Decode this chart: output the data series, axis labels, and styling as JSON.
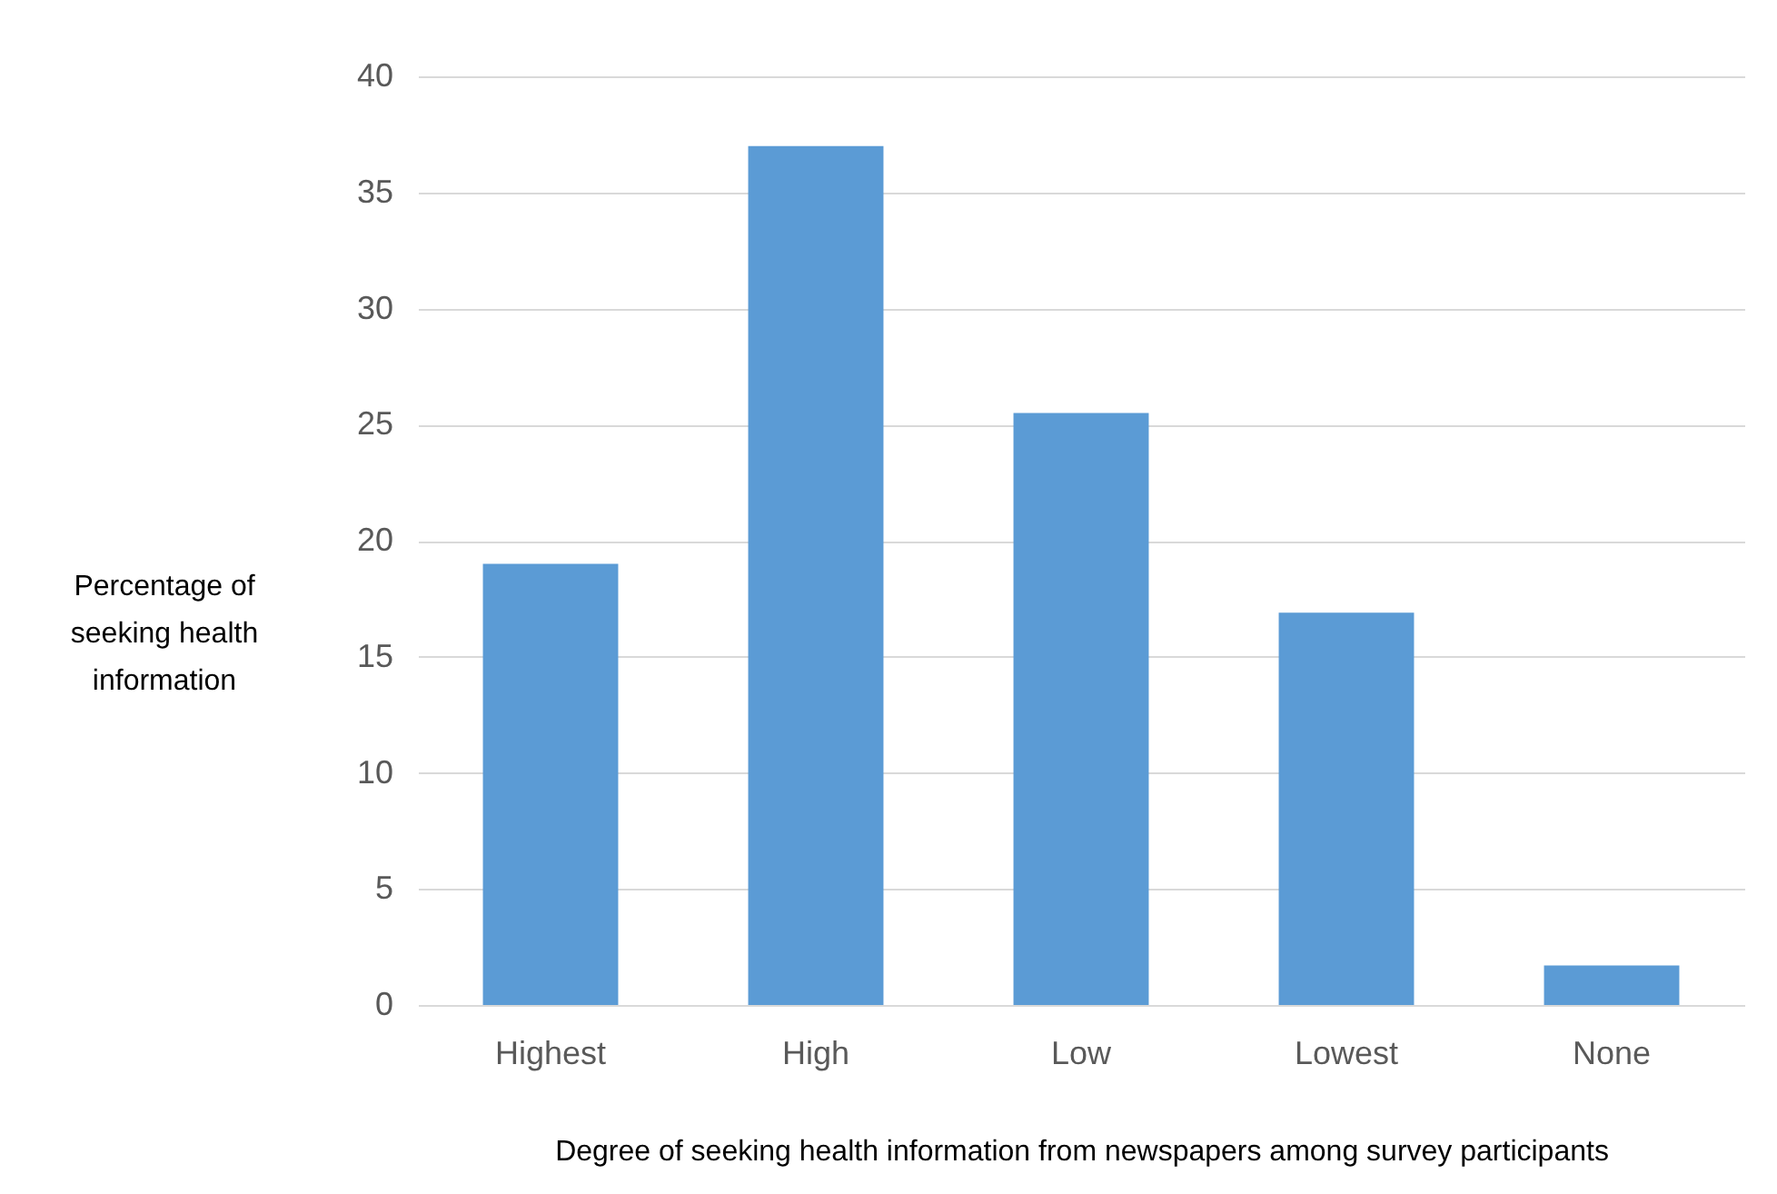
{
  "chart_data": {
    "type": "bar",
    "xlabel": "Degree of seeking health information from newspapers among survey participants",
    "ylabel": "Percentage of seeking health information",
    "categories": [
      "Highest",
      "High",
      "Low",
      "Lowest",
      "None"
    ],
    "values": [
      19,
      37,
      25.5,
      16.9,
      1.7
    ],
    "color": "#5b9bd5",
    "ylim": [
      0,
      40
    ],
    "yticks": [
      0,
      5,
      10,
      15,
      20,
      25,
      30,
      35,
      40
    ],
    "grid": "y"
  }
}
